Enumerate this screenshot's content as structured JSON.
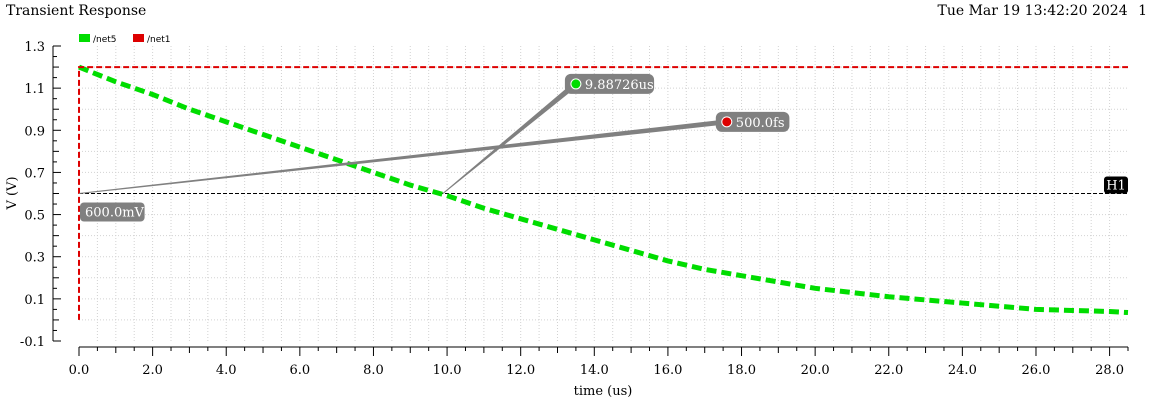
{
  "window": {
    "title": "Transient Response",
    "datetime": "Tue Mar 19 13:42:20 2024",
    "page_number": "1"
  },
  "chart_data": {
    "type": "line",
    "xlabel": "time (us)",
    "ylabel": "V (V)",
    "xlim": [
      0,
      28.5
    ],
    "ylim": [
      -0.1,
      1.3
    ],
    "x_ticks": [
      0.0,
      2.0,
      4.0,
      6.0,
      8.0,
      10.0,
      12.0,
      14.0,
      16.0,
      18.0,
      20.0,
      22.0,
      24.0,
      26.0,
      28.0
    ],
    "y_ticks": [
      -0.1,
      0.1,
      0.3,
      0.5,
      0.7,
      0.9,
      1.1,
      1.3
    ],
    "grid": true,
    "legend": {
      "placement": "top-left"
    },
    "series": [
      {
        "name": "/net5",
        "color": "#00dd00",
        "style": "dashed",
        "x": [
          0,
          1,
          2,
          3,
          4,
          5,
          6,
          7,
          8,
          9,
          10,
          11,
          12,
          13,
          14,
          15,
          16,
          17,
          18,
          19,
          20,
          21,
          22,
          23,
          24,
          25,
          26,
          27,
          28,
          28.5
        ],
        "y": [
          1.2,
          1.13,
          1.07,
          1.0,
          0.94,
          0.88,
          0.82,
          0.76,
          0.7,
          0.64,
          0.59,
          0.53,
          0.48,
          0.43,
          0.38,
          0.33,
          0.28,
          0.24,
          0.21,
          0.18,
          0.15,
          0.13,
          0.11,
          0.095,
          0.08,
          0.065,
          0.05,
          0.045,
          0.04,
          0.035
        ]
      },
      {
        "name": "/net1",
        "color": "#dd0000",
        "style": "dashed",
        "x": [
          0,
          0,
          0.0005,
          28.5
        ],
        "y": [
          0.0,
          0.0,
          1.2,
          1.2
        ]
      }
    ],
    "hline": {
      "label": "H1",
      "y": 0.6,
      "color": "#000000"
    },
    "markers": [
      {
        "label": "9.88726us",
        "x": 9.88726,
        "y": 0.6,
        "series": "/net5",
        "color": "#00dd00",
        "label_x": 13.5,
        "label_y": 1.12
      },
      {
        "label": "500.0fs",
        "x": 0,
        "y": 0.6,
        "series": "/net1",
        "color": "#dd0000",
        "label_x": 17.6,
        "label_y": 0.94
      }
    ],
    "annotations": [
      {
        "label": "600.0mV",
        "x": 0,
        "y": 0.6
      }
    ]
  }
}
